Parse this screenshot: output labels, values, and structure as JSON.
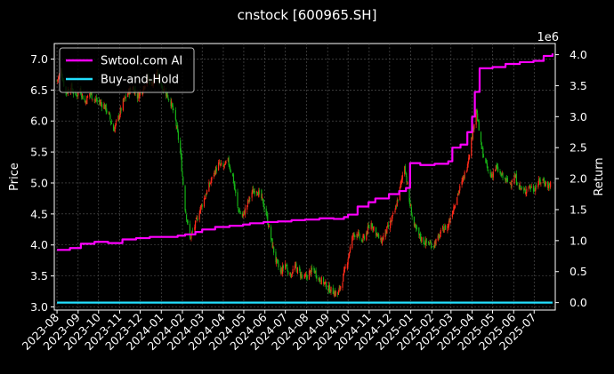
{
  "chart_data": {
    "type": "line",
    "title": "cnstock [600965.SH]",
    "ylabel_left": "Price",
    "ylabel_right": "Return",
    "right_axis_multiplier": "1e6",
    "ylim_left": [
      2.95,
      7.25
    ],
    "yticks_left": [
      "3.0",
      "3.5",
      "4.0",
      "4.5",
      "5.0",
      "5.5",
      "6.0",
      "6.5",
      "7.0"
    ],
    "ylim_right": [
      -0.12,
      4.18
    ],
    "yticks_right": [
      "0.0",
      "0.5",
      "1.0",
      "1.5",
      "2.0",
      "2.5",
      "3.0",
      "3.5",
      "4.0"
    ],
    "x_ticks": [
      "2023-08",
      "2023-09",
      "2023-10",
      "2023-11",
      "2023-12",
      "2024-01",
      "2024-02",
      "2024-03",
      "2024-04",
      "2024-05",
      "2024-06",
      "2024-07",
      "2024-08",
      "2024-09",
      "2024-10",
      "2024-11",
      "2024-12",
      "2025-01",
      "2025-02",
      "2025-03",
      "2025-04",
      "2025-05",
      "2025-06",
      "2025-07"
    ],
    "xlim": [
      "2023-07-28",
      "2025-08-01"
    ],
    "grid": true,
    "legend_position": "upper-left",
    "price_series": {
      "name": "",
      "style": "candlestick",
      "up_color": "#ff2a1a",
      "down_color": "#16b216",
      "points": [
        [
          "2023-08-01",
          6.65
        ],
        [
          "2023-08-07",
          6.8
        ],
        [
          "2023-08-14",
          6.45
        ],
        [
          "2023-08-21",
          6.55
        ],
        [
          "2023-08-28",
          6.4
        ],
        [
          "2023-09-04",
          6.5
        ],
        [
          "2023-09-11",
          6.3
        ],
        [
          "2023-09-18",
          6.45
        ],
        [
          "2023-09-25",
          6.35
        ],
        [
          "2023-10-09",
          6.25
        ],
        [
          "2023-10-16",
          6.1
        ],
        [
          "2023-10-23",
          5.85
        ],
        [
          "2023-10-30",
          6.05
        ],
        [
          "2023-11-06",
          6.3
        ],
        [
          "2023-11-13",
          6.45
        ],
        [
          "2023-11-20",
          6.55
        ],
        [
          "2023-11-27",
          6.4
        ],
        [
          "2023-12-04",
          6.5
        ],
        [
          "2023-12-11",
          6.7
        ],
        [
          "2023-12-18",
          6.6
        ],
        [
          "2023-12-25",
          6.75
        ],
        [
          "2024-01-02",
          6.55
        ],
        [
          "2024-01-08",
          6.45
        ],
        [
          "2024-01-15",
          6.3
        ],
        [
          "2024-01-22",
          6.0
        ],
        [
          "2024-01-29",
          5.5
        ],
        [
          "2024-02-05",
          4.6
        ],
        [
          "2024-02-12",
          4.1
        ],
        [
          "2024-02-19",
          4.3
        ],
        [
          "2024-02-26",
          4.55
        ],
        [
          "2024-03-04",
          4.75
        ],
        [
          "2024-03-11",
          4.95
        ],
        [
          "2024-03-18",
          5.15
        ],
        [
          "2024-03-25",
          5.3
        ],
        [
          "2024-04-01",
          5.25
        ],
        [
          "2024-04-08",
          5.35
        ],
        [
          "2024-04-15",
          5.1
        ],
        [
          "2024-04-22",
          4.6
        ],
        [
          "2024-04-29",
          4.45
        ],
        [
          "2024-05-06",
          4.65
        ],
        [
          "2024-05-13",
          4.85
        ],
        [
          "2024-05-20",
          4.9
        ],
        [
          "2024-05-27",
          4.75
        ],
        [
          "2024-06-03",
          4.5
        ],
        [
          "2024-06-10",
          4.1
        ],
        [
          "2024-06-17",
          3.75
        ],
        [
          "2024-06-24",
          3.55
        ],
        [
          "2024-07-01",
          3.7
        ],
        [
          "2024-07-08",
          3.5
        ],
        [
          "2024-07-15",
          3.65
        ],
        [
          "2024-07-22",
          3.55
        ],
        [
          "2024-07-29",
          3.45
        ],
        [
          "2024-08-05",
          3.55
        ],
        [
          "2024-08-12",
          3.6
        ],
        [
          "2024-08-19",
          3.45
        ],
        [
          "2024-08-26",
          3.4
        ],
        [
          "2024-09-02",
          3.3
        ],
        [
          "2024-09-09",
          3.25
        ],
        [
          "2024-09-16",
          3.2
        ],
        [
          "2024-09-23",
          3.45
        ],
        [
          "2024-09-30",
          3.75
        ],
        [
          "2024-10-08",
          4.15
        ],
        [
          "2024-10-14",
          4.2
        ],
        [
          "2024-10-21",
          4.05
        ],
        [
          "2024-10-28",
          4.2
        ],
        [
          "2024-11-04",
          4.35
        ],
        [
          "2024-11-11",
          4.2
        ],
        [
          "2024-11-18",
          4.05
        ],
        [
          "2024-11-25",
          4.2
        ],
        [
          "2024-12-02",
          4.35
        ],
        [
          "2024-12-09",
          4.55
        ],
        [
          "2024-12-16",
          4.9
        ],
        [
          "2024-12-23",
          5.3
        ],
        [
          "2024-12-30",
          4.7
        ],
        [
          "2025-01-06",
          4.3
        ],
        [
          "2025-01-13",
          4.15
        ],
        [
          "2025-01-20",
          4.05
        ],
        [
          "2025-02-03",
          4.0
        ],
        [
          "2025-02-10",
          4.1
        ],
        [
          "2025-02-17",
          4.25
        ],
        [
          "2025-02-24",
          4.3
        ],
        [
          "2025-03-03",
          4.55
        ],
        [
          "2025-03-10",
          4.8
        ],
        [
          "2025-03-17",
          5.0
        ],
        [
          "2025-03-24",
          5.25
        ],
        [
          "2025-03-31",
          5.7
        ],
        [
          "2025-04-07",
          6.2
        ],
        [
          "2025-04-14",
          5.6
        ],
        [
          "2025-04-21",
          5.3
        ],
        [
          "2025-04-28",
          5.1
        ],
        [
          "2025-05-06",
          5.25
        ],
        [
          "2025-05-12",
          5.15
        ],
        [
          "2025-05-19",
          5.05
        ],
        [
          "2025-05-26",
          5.0
        ],
        [
          "2025-06-03",
          5.1
        ],
        [
          "2025-06-09",
          4.95
        ],
        [
          "2025-06-16",
          4.85
        ],
        [
          "2025-06-23",
          4.95
        ],
        [
          "2025-06-30",
          4.9
        ],
        [
          "2025-07-07",
          5.0
        ],
        [
          "2025-07-14",
          5.05
        ],
        [
          "2025-07-21",
          4.95
        ],
        [
          "2025-07-28",
          5.0
        ]
      ]
    },
    "series": [
      {
        "name": "Swtool.com AI",
        "axis": "right",
        "color": "#ff00ff",
        "points": [
          [
            "2023-08-01",
            0.85
          ],
          [
            "2023-08-20",
            0.88
          ],
          [
            "2023-09-05",
            0.95
          ],
          [
            "2023-09-25",
            0.98
          ],
          [
            "2023-10-15",
            0.96
          ],
          [
            "2023-11-05",
            1.02
          ],
          [
            "2023-11-25",
            1.04
          ],
          [
            "2023-12-15",
            1.06
          ],
          [
            "2024-01-05",
            1.06
          ],
          [
            "2024-01-25",
            1.08
          ],
          [
            "2024-02-05",
            1.1
          ],
          [
            "2024-02-20",
            1.14
          ],
          [
            "2024-03-01",
            1.18
          ],
          [
            "2024-03-20",
            1.22
          ],
          [
            "2024-04-10",
            1.24
          ],
          [
            "2024-04-30",
            1.26
          ],
          [
            "2024-05-10",
            1.28
          ],
          [
            "2024-05-30",
            1.3
          ],
          [
            "2024-06-20",
            1.31
          ],
          [
            "2024-07-10",
            1.33
          ],
          [
            "2024-07-30",
            1.34
          ],
          [
            "2024-08-20",
            1.36
          ],
          [
            "2024-09-10",
            1.35
          ],
          [
            "2024-09-25",
            1.38
          ],
          [
            "2024-10-01",
            1.42
          ],
          [
            "2024-10-15",
            1.55
          ],
          [
            "2024-10-31",
            1.62
          ],
          [
            "2024-11-10",
            1.68
          ],
          [
            "2024-11-30",
            1.75
          ],
          [
            "2024-12-15",
            1.8
          ],
          [
            "2024-12-25",
            1.85
          ],
          [
            "2024-12-31",
            2.25
          ],
          [
            "2025-01-15",
            2.22
          ],
          [
            "2025-02-05",
            2.24
          ],
          [
            "2025-02-25",
            2.28
          ],
          [
            "2025-03-03",
            2.5
          ],
          [
            "2025-03-15",
            2.55
          ],
          [
            "2025-03-25",
            2.75
          ],
          [
            "2025-04-01",
            3.0
          ],
          [
            "2025-04-05",
            3.4
          ],
          [
            "2025-04-12",
            3.78
          ],
          [
            "2025-05-01",
            3.8
          ],
          [
            "2025-05-20",
            3.85
          ],
          [
            "2025-06-10",
            3.88
          ],
          [
            "2025-06-30",
            3.9
          ],
          [
            "2025-07-15",
            3.98
          ],
          [
            "2025-07-28",
            4.02
          ]
        ]
      },
      {
        "name": "Buy-and-Hold",
        "axis": "right",
        "color": "#22e0ff",
        "points": [
          [
            "2023-08-01",
            0.0
          ],
          [
            "2025-07-28",
            0.0
          ]
        ]
      }
    ]
  }
}
